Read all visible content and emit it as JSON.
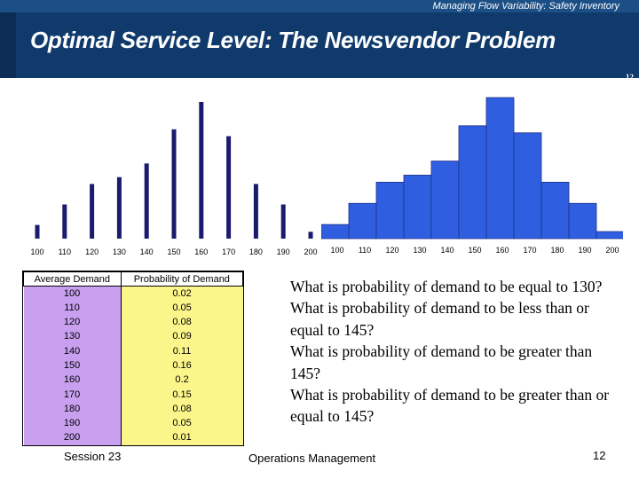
{
  "header": {
    "topic": "Managing Flow Variability: Safety Inventory",
    "title": "Optimal Service Level: The Newsvendor Problem",
    "page_number": "12"
  },
  "table": {
    "headers": [
      "Average Demand",
      "Probability of Demand"
    ],
    "rows": [
      [
        "100",
        "0.02"
      ],
      [
        "110",
        "0.05"
      ],
      [
        "120",
        "0.08"
      ],
      [
        "130",
        "0.09"
      ],
      [
        "140",
        "0.11"
      ],
      [
        "150",
        "0.16"
      ],
      [
        "160",
        "0.2"
      ],
      [
        "170",
        "0.15"
      ],
      [
        "180",
        "0.08"
      ],
      [
        "190",
        "0.05"
      ],
      [
        "200",
        "0.01"
      ]
    ]
  },
  "questions": [
    "What is probability of demand to be equal to 130?",
    "What is probability of demand to be less than or equal to 145?",
    "What is probability of demand to be greater than  145?",
    "What is probability of demand to be greater than or equal to 145?"
  ],
  "footer": {
    "session": "Session 23",
    "course": "Operations Management",
    "page": "12"
  },
  "colors": {
    "header_bg": "#0f3a6b",
    "bar_thin": "#1a1a6e",
    "bar_hist": "#2f5fe0"
  },
  "chart_data": [
    {
      "type": "bar",
      "categories": [
        "100",
        "110",
        "120",
        "130",
        "140",
        "150",
        "160",
        "170",
        "180",
        "190",
        "200"
      ],
      "values": [
        0.02,
        0.05,
        0.08,
        0.09,
        0.11,
        0.16,
        0.2,
        0.15,
        0.08,
        0.05,
        0.01
      ],
      "ylim": [
        0,
        0.2
      ],
      "grid": false
    },
    {
      "type": "bar",
      "categories": [
        "100",
        "110",
        "120",
        "130",
        "140",
        "150",
        "160",
        "170",
        "180",
        "190",
        "200"
      ],
      "values": [
        0.02,
        0.05,
        0.08,
        0.09,
        0.11,
        0.16,
        0.2,
        0.15,
        0.08,
        0.05,
        0.01
      ],
      "ylim": [
        0,
        0.2
      ],
      "grid": false
    }
  ]
}
